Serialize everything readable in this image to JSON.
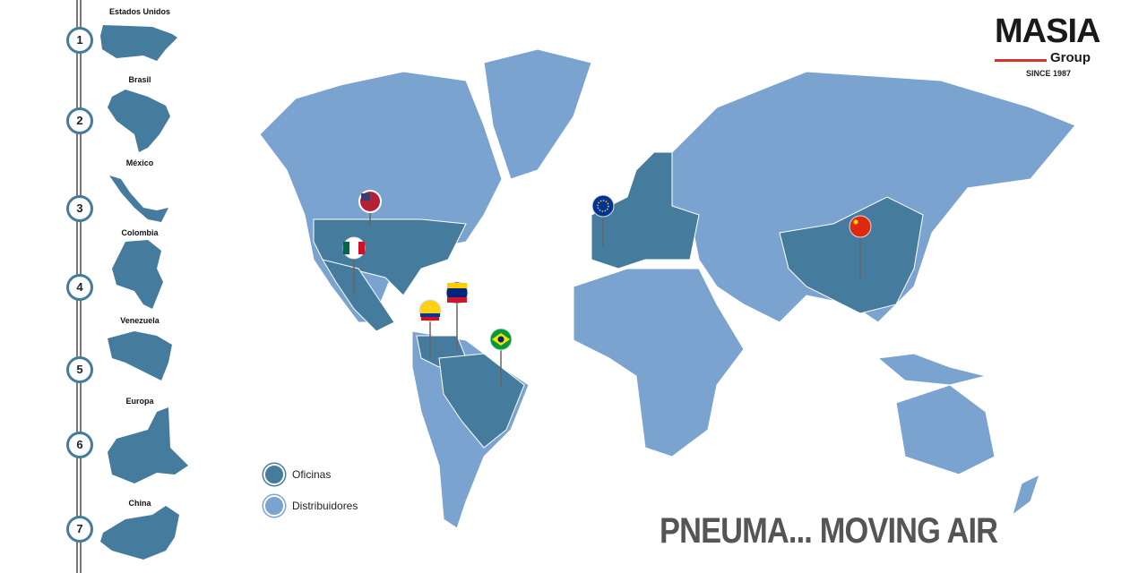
{
  "logo": {
    "name": "MASIA",
    "sub": "Group",
    "since": "SINCE 1987"
  },
  "colors": {
    "offices": "#457b9d",
    "distributors": "#7ba3cf"
  },
  "locations": [
    {
      "num": "1",
      "name": "Estados Unidos",
      "flag": "us-flag-icon"
    },
    {
      "num": "2",
      "name": "Brasil",
      "flag": "brazil-flag-icon"
    },
    {
      "num": "3",
      "name": "México",
      "flag": "mexico-flag-icon"
    },
    {
      "num": "4",
      "name": "Colombia",
      "flag": "colombia-flag-icon"
    },
    {
      "num": "5",
      "name": "Venezuela",
      "flag": "venezuela-flag-icon"
    },
    {
      "num": "6",
      "name": "Europa",
      "flag": "eu-flag-icon"
    },
    {
      "num": "7",
      "name": "China",
      "flag": "china-flag-icon"
    }
  ],
  "legend": {
    "offices": "Oficinas",
    "distributors": "Distribuidores"
  },
  "slogan": "PNEUMA... MOVING AIR"
}
